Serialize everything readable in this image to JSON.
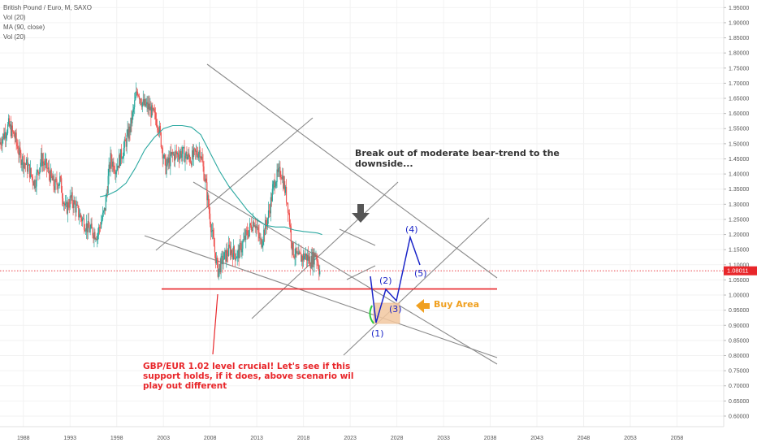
{
  "legend": {
    "title": "British Pound / Euro, M, SAXO",
    "line2": "Vol (20)",
    "line3": "MA (90, close)",
    "line4": "Vol (20)"
  },
  "current_price": "1.08011",
  "annotations": {
    "breakout": [
      "Break out of moderate bear-trend to the",
      "downside..."
    ],
    "support": [
      "GBP/EUR 1.02 level crucial! Let's see if this",
      "support holds, if it does, above scenario wil",
      "play out different"
    ],
    "buy_area": "Buy Area",
    "waves": [
      "(1)",
      "(2)",
      "(3)",
      "(4)",
      "(5)"
    ]
  },
  "colors": {
    "up": "#26a69a",
    "down": "#ef5350",
    "ma": "#2aa8a0",
    "support_line": "#e8262a",
    "trend_lines": "#8a8a8a",
    "wave_path": "#1a24c8",
    "buy_area": "#f3c8a0",
    "arrow": "#f0a020",
    "price_tag": "#e8262a"
  },
  "chart_data": {
    "type": "candlestick",
    "symbol": "British Pound / Euro, M, SAXO",
    "xlim": [
      1985.5,
      2063
    ],
    "ylim": [
      0.565,
      1.975
    ],
    "x_ticks": [
      1988,
      1993,
      1998,
      2003,
      2008,
      2013,
      2018,
      2023,
      2028,
      2033,
      2038,
      2043,
      2048,
      2053,
      2058
    ],
    "y_ticks": [
      "0.60000",
      "0.65000",
      "0.70000",
      "0.75000",
      "0.80000",
      "0.85000",
      "0.90000",
      "0.95000",
      "1.00000",
      "1.05000",
      "1.10000",
      "1.15000",
      "1.20000",
      "1.25000",
      "1.30000",
      "1.35000",
      "1.40000",
      "1.45000",
      "1.50000",
      "1.55000",
      "1.60000",
      "1.65000",
      "1.70000",
      "1.75000",
      "1.80000",
      "1.85000",
      "1.90000",
      "1.95000"
    ],
    "price_path": [
      [
        1985.5,
        1.5
      ],
      [
        1986.5,
        1.56
      ],
      [
        1987.2,
        1.52
      ],
      [
        1987.7,
        1.46
      ],
      [
        1988.6,
        1.42
      ],
      [
        1989.3,
        1.37
      ],
      [
        1990.0,
        1.45
      ],
      [
        1990.6,
        1.42
      ],
      [
        1991.4,
        1.36
      ],
      [
        1992.0,
        1.38
      ],
      [
        1992.6,
        1.28
      ],
      [
        1993.2,
        1.32
      ],
      [
        1994.0,
        1.27
      ],
      [
        1995.0,
        1.22
      ],
      [
        1996.0,
        1.2
      ],
      [
        1996.8,
        1.28
      ],
      [
        1997.4,
        1.45
      ],
      [
        1998.0,
        1.42
      ],
      [
        1998.8,
        1.48
      ],
      [
        1999.5,
        1.55
      ],
      [
        2000.3,
        1.68
      ],
      [
        2000.9,
        1.63
      ],
      [
        2001.5,
        1.62
      ],
      [
        2002.5,
        1.57
      ],
      [
        2003.3,
        1.42
      ],
      [
        2004.0,
        1.46
      ],
      [
        2005.0,
        1.47
      ],
      [
        2006.0,
        1.45
      ],
      [
        2007.0,
        1.48
      ],
      [
        2007.6,
        1.37
      ],
      [
        2008.3,
        1.2
      ],
      [
        2008.9,
        1.08
      ],
      [
        2009.5,
        1.12
      ],
      [
        2010.2,
        1.15
      ],
      [
        2011.0,
        1.13
      ],
      [
        2012.0,
        1.2
      ],
      [
        2012.8,
        1.25
      ],
      [
        2013.5,
        1.17
      ],
      [
        2014.3,
        1.26
      ],
      [
        2015.0,
        1.38
      ],
      [
        2015.7,
        1.41
      ],
      [
        2016.4,
        1.3
      ],
      [
        2016.9,
        1.15
      ],
      [
        2017.5,
        1.12
      ],
      [
        2018.3,
        1.13
      ],
      [
        2018.9,
        1.11
      ],
      [
        2019.4,
        1.14
      ],
      [
        2019.8,
        1.08
      ]
    ],
    "ma90": [
      [
        1996.2,
        1.325
      ],
      [
        1997.0,
        1.33
      ],
      [
        1998.0,
        1.345
      ],
      [
        1999.0,
        1.37
      ],
      [
        2000.0,
        1.42
      ],
      [
        2001.0,
        1.48
      ],
      [
        2002.0,
        1.52
      ],
      [
        2003.0,
        1.55
      ],
      [
        2004.0,
        1.56
      ],
      [
        2005.0,
        1.56
      ],
      [
        2006.0,
        1.555
      ],
      [
        2007.0,
        1.53
      ],
      [
        2008.0,
        1.47
      ],
      [
        2009.0,
        1.41
      ],
      [
        2010.0,
        1.36
      ],
      [
        2011.0,
        1.32
      ],
      [
        2012.0,
        1.28
      ],
      [
        2013.0,
        1.25
      ],
      [
        2014.0,
        1.23
      ],
      [
        2015.0,
        1.225
      ],
      [
        2016.0,
        1.225
      ],
      [
        2017.0,
        1.215
      ],
      [
        2018.0,
        1.21
      ],
      [
        2019.5,
        1.205
      ],
      [
        2020.0,
        1.2
      ]
    ],
    "support_level": 1.02,
    "current_price": 1.08011
  }
}
